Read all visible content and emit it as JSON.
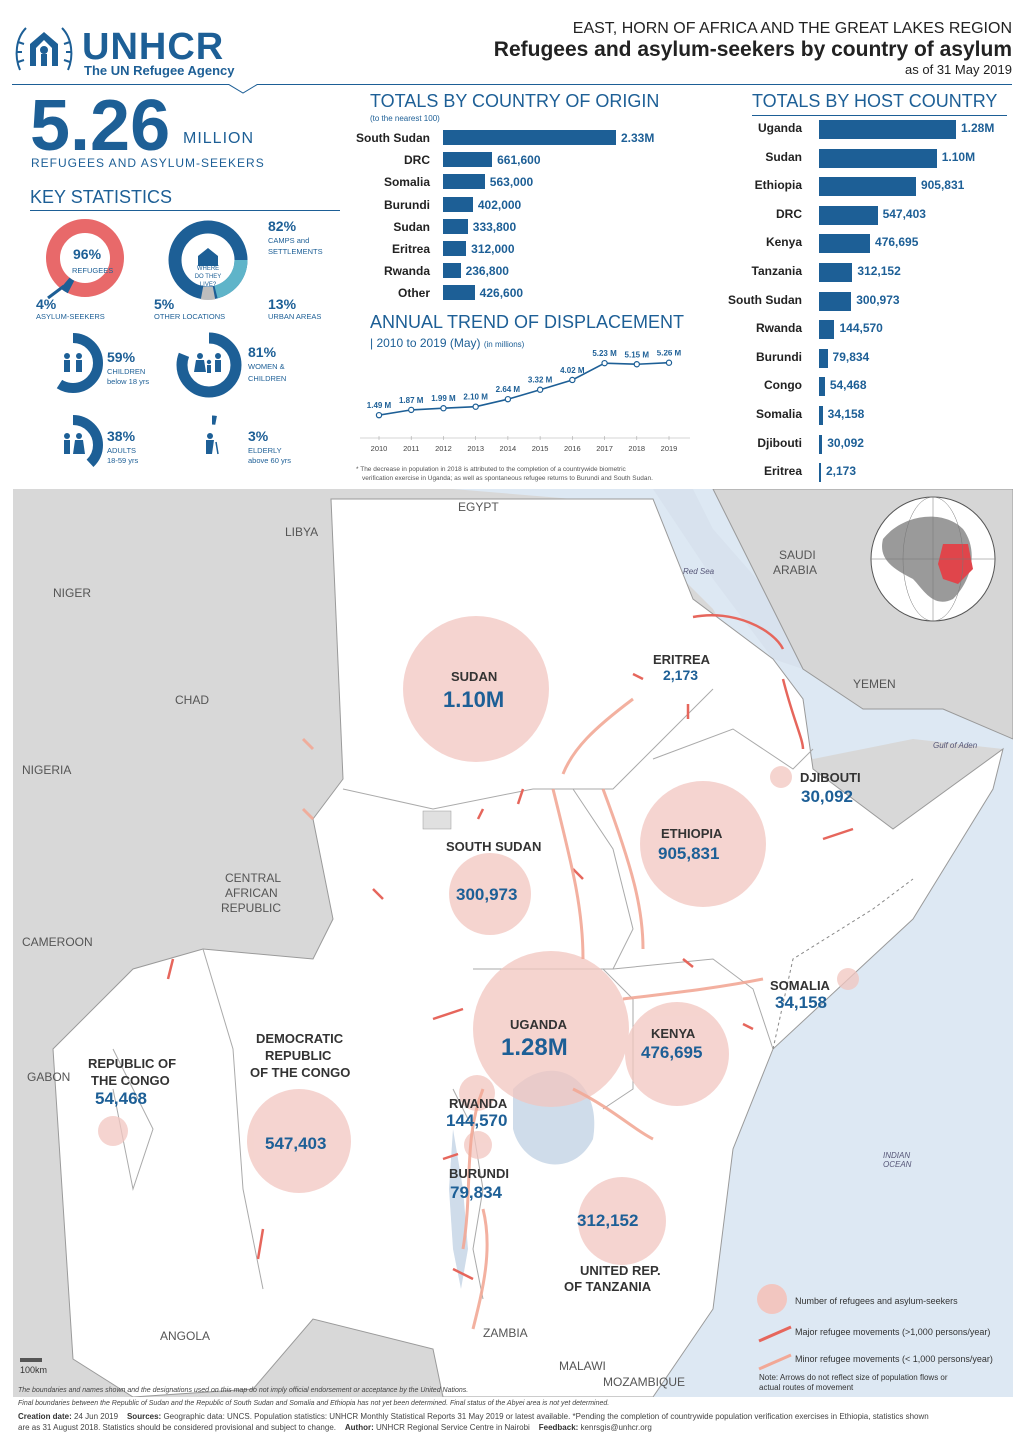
{
  "header": {
    "logo_text": "UNHCR",
    "logo_sub": "The UN Refugee Agency",
    "region": "EAST, HORN OF AFRICA AND THE GREAT LAKES REGION",
    "title": "Refugees and asylum-seekers by country of asylum",
    "date": "as of 31 May 2019"
  },
  "headline": {
    "value": "5.26",
    "unit": "MILLION",
    "label": "REFUGEES AND ASYLUM-SEEKERS"
  },
  "key_statistics": {
    "title": "KEY STATISTICS",
    "refugees_pct": "96%",
    "refugees_label": "REFUGEES",
    "asylum_pct": "4%",
    "asylum_label": "ASYLUM-SEEKERS",
    "where_center": "WHERE DO THEY LIVE?",
    "camps_pct": "82%",
    "camps_label1": "CAMPS and",
    "camps_label2": "SETTLEMENTS",
    "other_pct": "5%",
    "other_label": "OTHER LOCATIONS",
    "urban_pct": "13%",
    "urban_label": "URBAN AREAS",
    "children_pct": "59%",
    "children_label1": "CHILDREN",
    "children_label2": "below 18 yrs",
    "women_pct": "81%",
    "women_label1": "WOMEN &",
    "women_label2": "CHILDREN",
    "adults_pct": "38%",
    "adults_label1": "ADULTS",
    "adults_label2": "18-59 yrs",
    "elderly_pct": "3%",
    "elderly_label1": "ELDERLY",
    "elderly_label2": "above 60 yrs"
  },
  "origin": {
    "title": "TOTALS BY COUNTRY OF ORIGIN",
    "subtitle": "(to the nearest 100)",
    "rows": [
      {
        "label": "South Sudan",
        "value": 2330000,
        "display": "2.33M"
      },
      {
        "label": "DRC",
        "value": 661600,
        "display": "661,600"
      },
      {
        "label": "Somalia",
        "value": 563000,
        "display": "563,000"
      },
      {
        "label": "Burundi",
        "value": 402000,
        "display": "402,000"
      },
      {
        "label": "Sudan",
        "value": 333800,
        "display": "333,800"
      },
      {
        "label": "Eritrea",
        "value": 312000,
        "display": "312,000"
      },
      {
        "label": "Rwanda",
        "value": 236800,
        "display": "236,800"
      },
      {
        "label": "Other",
        "value": 426600,
        "display": "426,600"
      }
    ]
  },
  "host": {
    "title": "TOTALS BY HOST COUNTRY",
    "rows": [
      {
        "label": "Uganda",
        "value": 1280000,
        "display": "1.28M"
      },
      {
        "label": "Sudan",
        "value": 1100000,
        "display": "1.10M"
      },
      {
        "label": "Ethiopia",
        "value": 905831,
        "display": "905,831"
      },
      {
        "label": "DRC",
        "value": 547403,
        "display": "547,403"
      },
      {
        "label": "Kenya",
        "value": 476695,
        "display": "476,695"
      },
      {
        "label": "Tanzania",
        "value": 312152,
        "display": "312,152"
      },
      {
        "label": "South Sudan",
        "value": 300973,
        "display": "300,973"
      },
      {
        "label": "Rwanda",
        "value": 144570,
        "display": "144,570"
      },
      {
        "label": "Burundi",
        "value": 79834,
        "display": "79,834"
      },
      {
        "label": "Congo",
        "value": 54468,
        "display": "54,468"
      },
      {
        "label": "Somalia",
        "value": 34158,
        "display": "34,158"
      },
      {
        "label": "Djibouti",
        "value": 30092,
        "display": "30,092"
      },
      {
        "label": "Eritrea",
        "value": 2173,
        "display": "2,173"
      }
    ]
  },
  "chart_data": {
    "type": "line",
    "title": "ANNUAL TREND OF DISPLACEMENT",
    "subtitle": "2010  to  2019 (May)",
    "unit_note": "(in millions)",
    "x": [
      "2010",
      "2011",
      "2012",
      "2013",
      "2014",
      "2015",
      "2016",
      "2017",
      "2018",
      "2019"
    ],
    "values": [
      1.49,
      1.87,
      1.99,
      2.1,
      2.64,
      3.32,
      4.02,
      5.23,
      5.15,
      5.26
    ],
    "labels": [
      "1.49 M",
      "1.87 M",
      "1.99 M",
      "2.10 M",
      "2.64 M",
      "3.32 M",
      "4.02 M",
      "5.23 M",
      "5.15 M",
      "5.26 M"
    ],
    "ylim": [
      1.0,
      5.6
    ]
  },
  "trend_note1": "* The decrease in population in 2018 is attributed to the completion of a countrywide biometric",
  "trend_note2": "verification exercise in Uganda; as well as spontaneous refugee returns to Burundi and South Sudan.",
  "map": {
    "neighbors": {
      "libya": "LIBYA",
      "egypt": "EGYPT",
      "niger": "NIGER",
      "chad": "CHAD",
      "saudi1": "SAUDI",
      "saudi2": "ARABIA",
      "yemen": "YEMEN",
      "nigeria": "NIGERIA",
      "car1": "CENTRAL",
      "car2": "AFRICAN",
      "car3": "REPUBLIC",
      "cameroon": "CAMEROON",
      "gabon": "GABON",
      "angola": "ANGOLA",
      "zambia": "ZAMBIA",
      "malawi": "MALAWI",
      "mozambique": "MOZAMBIQUE"
    },
    "water": {
      "red_sea": "Red Sea",
      "gulf_aden": "Gulf of Aden",
      "indian1": "INDIAN",
      "indian2": "OCEAN"
    },
    "hosts": {
      "sudan_name": "SUDAN",
      "sudan_val": "1.10M",
      "eritrea_name": "ERITREA",
      "eritrea_val": "2,173",
      "djibouti_name": "DJIBOUTI",
      "djibouti_val": "30,092",
      "ethiopia_name": "ETHIOPIA",
      "ethiopia_val": "905,831",
      "ssudan_name": "SOUTH SUDAN",
      "ssudan_val": "300,973",
      "somalia_name": "SOMALIA",
      "somalia_val": "34,158",
      "uganda_name": "UGANDA",
      "uganda_val": "1.28M",
      "kenya_name": "KENYA",
      "kenya_val": "476,695",
      "roc_name1": "REPUBLIC OF",
      "roc_name2": "THE CONGO",
      "roc_val": "54,468",
      "drc_name1": "DEMOCRATIC",
      "drc_name2": "REPUBLIC",
      "drc_name3": "OF THE CONGO",
      "drc_val": "547,403",
      "rwanda_name": "RWANDA",
      "rwanda_val": "144,570",
      "burundi_name": "BURUNDI",
      "burundi_val": "79,834",
      "tanzania_val": "312,152",
      "tanzania_name1": "UNITED REP.",
      "tanzania_name2": "OF TANZANIA"
    },
    "legend": {
      "circle": "Number of refugees and asylum-seekers",
      "major": "Major refugee movements (>1,000 persons/year)",
      "minor": "Minor refugee movements (< 1,000 persons/year)",
      "note": "Note: Arrows do not reflect size of population flows or actual routes of movement"
    },
    "scale": "100km"
  },
  "footer": {
    "disclaimer1": "The boundaries and names shown and the designations used on this map do not imply official endorsement or acceptance by the United Nations.",
    "disclaimer2": "Final boundaries between the Republic of Sudan and the Republic of South Sudan and Somalia and Ethiopia has not yet been determined. Final status of the Abyei area is not yet determined.",
    "creation_label": "Creation date:",
    "creation": "24 Jun 2019",
    "sources_label": "Sources:",
    "sources": "Geographic data: UNCS. Population statistics: UNHCR Monthly Statistical Reports 31 May 2019 or latest available. *Pending the completion of countrywide population verification exercises in Ethiopia, statistics shown",
    "sources2": "are as 31 August 2018. Statistics should be considered provisional and subject to change.",
    "author_label": "Author:",
    "author": "UNHCR Regional Service Centre in Nairobi",
    "feedback_label": "Feedback:",
    "feedback": "kenrsgis@unhcr.org"
  }
}
